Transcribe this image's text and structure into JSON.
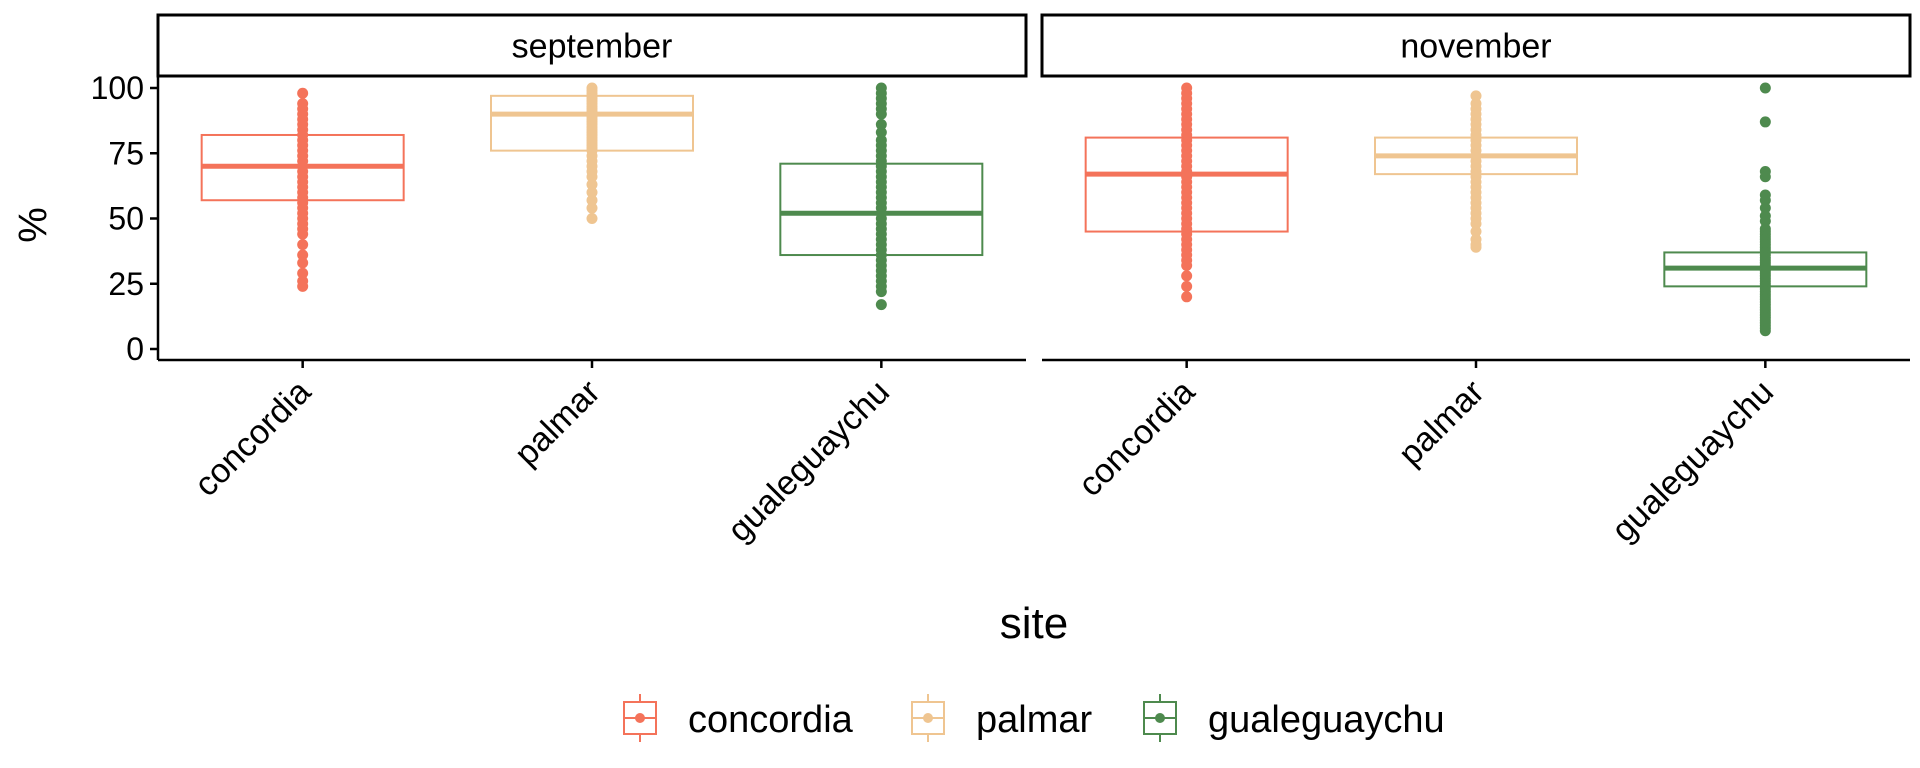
{
  "chart_data": {
    "type": "boxplot",
    "xlabel": "site",
    "ylabel": "%",
    "ylim": [
      0,
      100
    ],
    "yticks": [
      0,
      25,
      50,
      75,
      100
    ],
    "grid": false,
    "legend_position": "bottom",
    "categories": [
      "concordia",
      "palmar",
      "gualeguaychu"
    ],
    "colors": {
      "concordia": "#F4735A",
      "palmar": "#EFC591",
      "gualeguaychu": "#4E8A4E"
    },
    "panels": [
      {
        "label": "september",
        "boxes": [
          {
            "site": "concordia",
            "q1": 57,
            "median": 70,
            "q3": 82,
            "points": [
              98,
              94,
              92,
              90,
              88,
              86,
              84,
              82,
              80,
              78,
              76,
              74,
              72,
              70,
              68,
              66,
              64,
              62,
              60,
              58,
              56,
              54,
              52,
              50,
              48,
              46,
              44,
              40,
              36,
              33,
              29,
              26,
              24
            ]
          },
          {
            "site": "palmar",
            "q1": 76,
            "median": 90,
            "q3": 97,
            "points": [
              100,
              99,
              98,
              97,
              96,
              95,
              94,
              93,
              92,
              91,
              90,
              89,
              88,
              87,
              86,
              85,
              84,
              83,
              82,
              81,
              80,
              79,
              78,
              77,
              76,
              74,
              72,
              70,
              68,
              66,
              63,
              60,
              57,
              54,
              50
            ]
          },
          {
            "site": "gualeguaychu",
            "q1": 36,
            "median": 52,
            "q3": 71,
            "points": [
              100,
              98,
              96,
              94,
              92,
              90,
              86,
              83,
              80,
              78,
              76,
              74,
              72,
              70,
              68,
              66,
              64,
              62,
              60,
              58,
              56,
              54,
              52,
              50,
              48,
              46,
              44,
              42,
              40,
              38,
              36,
              34,
              32,
              30,
              28,
              26,
              24,
              22,
              17
            ]
          }
        ]
      },
      {
        "label": "november",
        "boxes": [
          {
            "site": "concordia",
            "q1": 45,
            "median": 67,
            "q3": 81,
            "points": [
              100,
              98,
              96,
              94,
              92,
              90,
              88,
              86,
              84,
              82,
              80,
              78,
              76,
              74,
              72,
              70,
              68,
              66,
              64,
              62,
              60,
              58,
              56,
              54,
              52,
              50,
              48,
              46,
              44,
              42,
              40,
              38,
              36,
              34,
              32,
              28,
              24,
              20
            ]
          },
          {
            "site": "palmar",
            "q1": 67,
            "median": 74,
            "q3": 81,
            "points": [
              97,
              94,
              92,
              90,
              88,
              86,
              84,
              82,
              80,
              78,
              76,
              74,
              72,
              70,
              68,
              66,
              64,
              62,
              60,
              58,
              56,
              54,
              52,
              50,
              48,
              45,
              42,
              40,
              39
            ]
          },
          {
            "site": "gualeguaychu",
            "q1": 24,
            "median": 31,
            "q3": 37,
            "points": [
              100,
              87,
              68,
              66,
              59,
              57,
              54,
              51,
              49,
              46,
              45,
              44,
              43,
              42,
              41,
              40,
              39,
              38,
              37,
              36,
              35,
              34,
              33,
              32,
              31,
              30,
              29,
              28,
              27,
              26,
              25,
              24,
              23,
              22,
              21,
              20,
              19,
              18,
              17,
              16,
              15,
              14,
              13,
              12,
              11,
              10,
              9,
              8,
              7
            ]
          }
        ]
      }
    ]
  }
}
